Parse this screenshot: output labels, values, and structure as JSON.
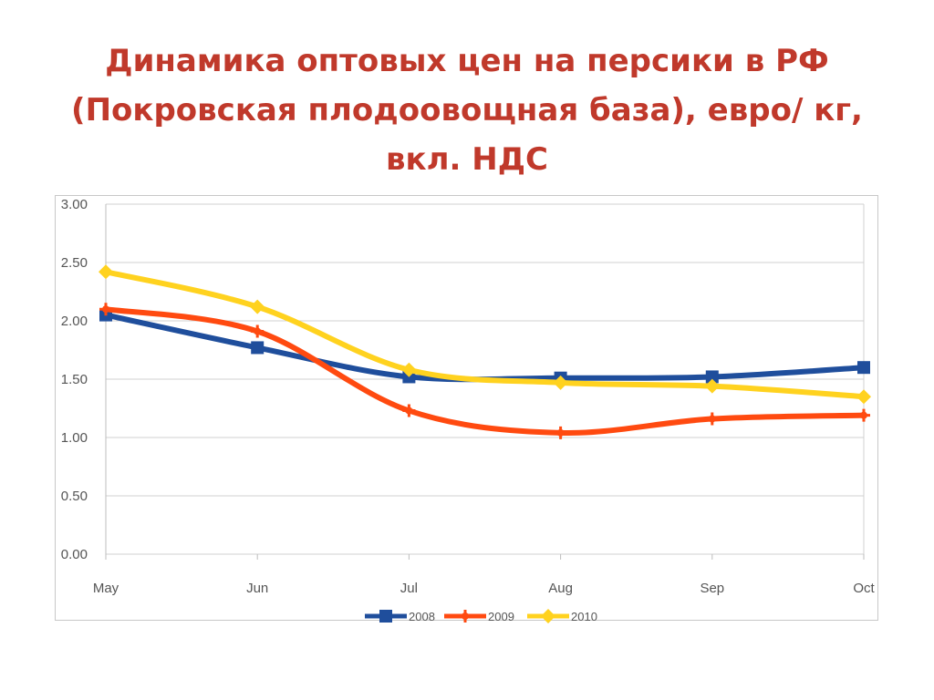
{
  "title": {
    "line1": "Динамика оптовых цен на персики в РФ",
    "line2": "(Покровская плодоовощная база), евро/ кг,",
    "line3": "вкл. НДС"
  },
  "chart_data": {
    "type": "line",
    "categories": [
      "May",
      "Jun",
      "Jul",
      "Aug",
      "Sep",
      "Oct"
    ],
    "ylim": [
      0,
      3
    ],
    "yticks": [
      "0.00",
      "0.50",
      "1.00",
      "1.50",
      "2.00",
      "2.50",
      "3.00"
    ],
    "grid": true,
    "legend": "bottom",
    "series": [
      {
        "name": "2008",
        "color": "#1f4e9c",
        "marker": "square",
        "values": [
          2.05,
          1.77,
          1.52,
          1.51,
          1.52,
          1.6
        ]
      },
      {
        "name": "2009",
        "color": "#ff4a10",
        "marker": "star",
        "values": [
          2.1,
          1.91,
          1.23,
          1.04,
          1.16,
          1.19
        ]
      },
      {
        "name": "2010",
        "color": "#ffd21f",
        "marker": "diamond",
        "values": [
          2.42,
          2.12,
          1.58,
          1.47,
          1.44,
          1.35
        ]
      }
    ]
  }
}
